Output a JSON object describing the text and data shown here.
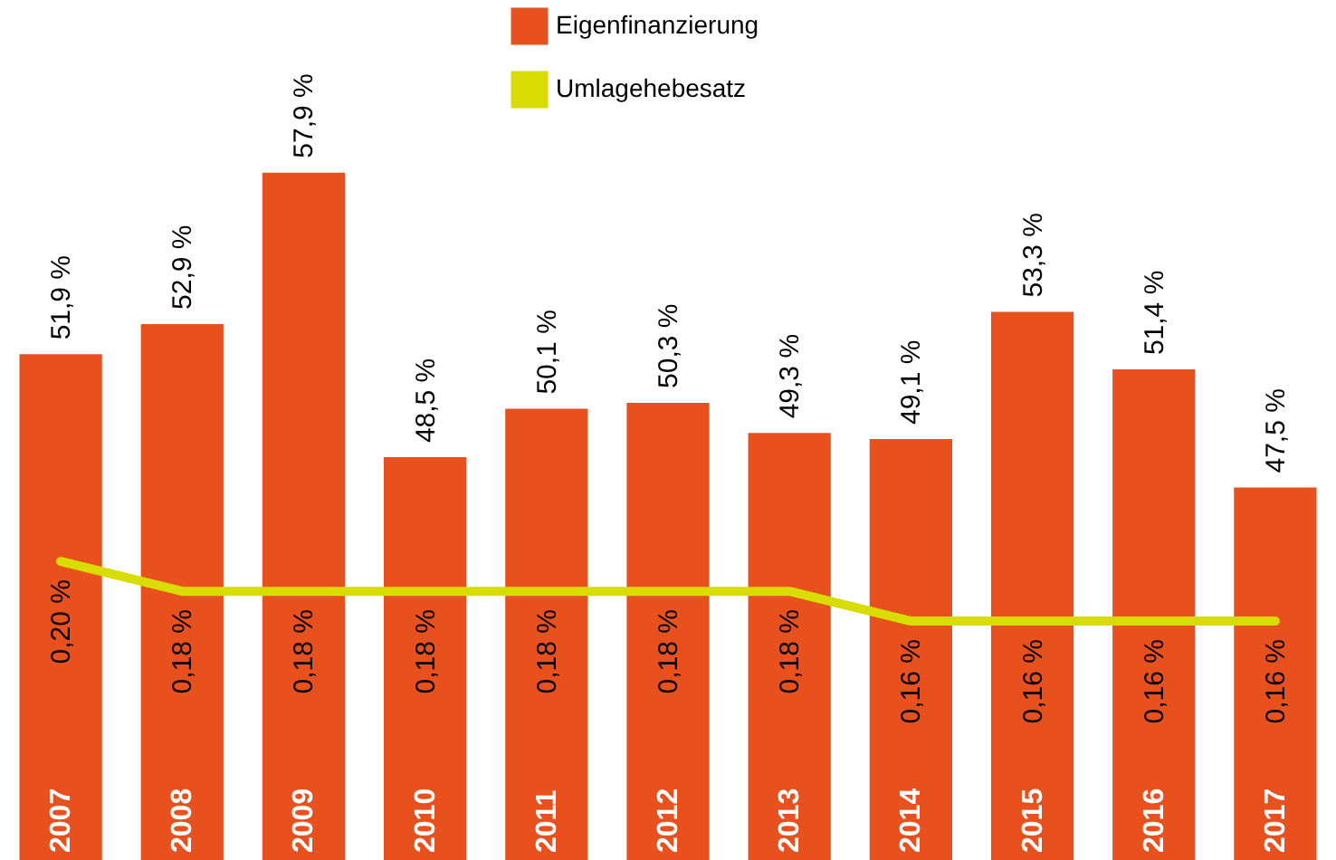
{
  "chart_data": {
    "type": "bar",
    "categories": [
      "2007",
      "2008",
      "2009",
      "2010",
      "2011",
      "2012",
      "2013",
      "2014",
      "2015",
      "2016",
      "2017"
    ],
    "series": [
      {
        "name": "Eigenfinanzierung",
        "color": "#e8501e",
        "values": [
          51.9,
          52.9,
          57.9,
          48.5,
          50.1,
          50.3,
          49.3,
          49.1,
          53.3,
          51.4,
          47.5
        ],
        "value_labels": [
          "51,9 %",
          "52,9 %",
          "57,9 %",
          "48,5 %",
          "50,1 %",
          "50,3 %",
          "49,3 %",
          "49,1 %",
          "53,3 %",
          "51,4 %",
          "47,5 %"
        ]
      },
      {
        "name": "Umlagehebesatz",
        "type": "line",
        "axis": "y2",
        "color": "#d9dc00",
        "values": [
          0.2,
          0.18,
          0.18,
          0.18,
          0.18,
          0.18,
          0.18,
          0.16,
          0.16,
          0.16,
          0.16
        ],
        "value_labels": [
          "0,20 %",
          "0,18 %",
          "0,18 %",
          "0,18 %",
          "0,18 %",
          "0,18 %",
          "0,18 %",
          "0,16 %",
          "0,16 %",
          "0,16 %",
          "0,16 %"
        ]
      }
    ],
    "ylim": [
      35.2,
      63.6
    ],
    "y2lim": [
      0,
      0.576
    ],
    "legend": "top"
  }
}
